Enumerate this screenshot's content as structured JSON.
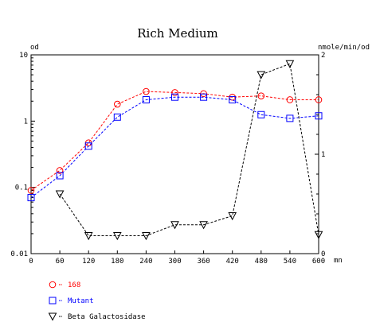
{
  "chart_data": {
    "type": "line",
    "title": "Rich Medium",
    "xlabel": "mn",
    "ylabel": "od",
    "y2label": "nmole/min/od",
    "xlim": [
      0,
      600
    ],
    "ylim": [
      0.01,
      10
    ],
    "y2lim": [
      0,
      2
    ],
    "yscale": "log",
    "grid": false,
    "legend_position": "bottom-left",
    "x_ticks": [
      "0",
      "60",
      "120",
      "180",
      "240",
      "300",
      "360",
      "420",
      "480",
      "540",
      "600"
    ],
    "y_ticks": [
      "0.01",
      "0.1",
      "1",
      "10"
    ],
    "y2_ticks": [
      "0",
      "1",
      "2"
    ],
    "series": [
      {
        "name": "168",
        "color": "#ff0000",
        "marker": "circle",
        "axis": "left",
        "x": [
          0,
          60,
          120,
          180,
          240,
          300,
          360,
          420,
          480,
          540,
          600
        ],
        "y": [
          0.09,
          0.18,
          0.47,
          1.8,
          2.8,
          2.7,
          2.6,
          2.3,
          2.4,
          2.1,
          2.1
        ]
      },
      {
        "name": "Mutant",
        "color": "#0000ff",
        "marker": "square",
        "axis": "left",
        "x": [
          0,
          60,
          120,
          180,
          240,
          300,
          360,
          420,
          480,
          540,
          600
        ],
        "y": [
          0.07,
          0.15,
          0.42,
          1.15,
          2.1,
          2.3,
          2.3,
          2.1,
          1.25,
          1.1,
          1.2
        ]
      },
      {
        "name": "Beta Galactosidase",
        "color": "#000000",
        "marker": "triangle-down",
        "axis": "right",
        "x": [
          60,
          120,
          180,
          240,
          300,
          360,
          420,
          480,
          540,
          600
        ],
        "y": [
          0.6,
          0.18,
          0.18,
          0.18,
          0.29,
          0.29,
          0.38,
          1.8,
          1.91,
          0.19
        ]
      }
    ]
  }
}
